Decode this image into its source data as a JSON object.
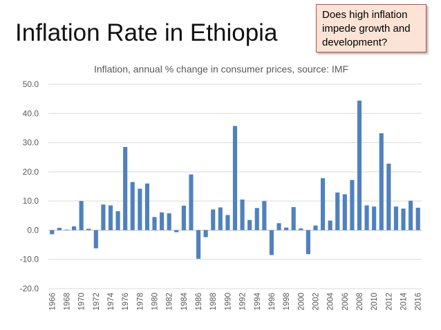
{
  "slide": {
    "title": "Inflation Rate in Ethiopia",
    "callout_lines": [
      "Does high inflation",
      "impede growth and",
      "development?"
    ]
  },
  "chart_data": {
    "type": "bar",
    "title": "Inflation, annual % change in consumer prices, source: IMF",
    "xlabel": "",
    "ylabel": "",
    "ylim": [
      -20,
      50
    ],
    "yticks": [
      50,
      40,
      30,
      20,
      10,
      0,
      -10,
      -20
    ],
    "ytick_labels": [
      "50.0",
      "40.0",
      "30.0",
      "20.0",
      "10.0",
      "0.0",
      "-10.0",
      "-20.0"
    ],
    "grid": true,
    "bar_color": "#4f81bd",
    "categories": [
      1966,
      1967,
      1968,
      1969,
      1970,
      1971,
      1972,
      1973,
      1974,
      1975,
      1976,
      1977,
      1978,
      1979,
      1980,
      1981,
      1982,
      1983,
      1984,
      1985,
      1986,
      1987,
      1988,
      1989,
      1990,
      1991,
      1992,
      1993,
      1994,
      1995,
      1996,
      1997,
      1998,
      1999,
      2000,
      2001,
      2002,
      2003,
      2004,
      2005,
      2006,
      2007,
      2008,
      2009,
      2010,
      2011,
      2012,
      2013,
      2014,
      2015,
      2016
    ],
    "x_tick_labels": [
      "1966",
      "1968",
      "1970",
      "1972",
      "1974",
      "1976",
      "1978",
      "1980",
      "1982",
      "1984",
      "1986",
      "1988",
      "1990",
      "1992",
      "1994",
      "1996",
      "1998",
      "2000",
      "2002",
      "2004",
      "2006",
      "2008",
      "2010",
      "2012",
      "2014",
      "2016"
    ],
    "values": [
      -1.4,
      0.8,
      0.2,
      1.3,
      10.0,
      0.5,
      -6.2,
      8.8,
      8.5,
      6.5,
      28.5,
      16.5,
      14.2,
      16.0,
      4.5,
      6.1,
      5.8,
      -0.7,
      8.4,
      19.1,
      -9.8,
      -2.4,
      7.1,
      7.8,
      5.2,
      35.7,
      10.5,
      3.5,
      7.6,
      10.0,
      -8.5,
      2.4,
      0.9,
      7.9,
      0.6,
      -8.2,
      1.6,
      17.8,
      3.3,
      12.9,
      12.3,
      17.2,
      44.4,
      8.5,
      8.1,
      33.2,
      22.8,
      8.1,
      7.4,
      10.1,
      7.7
    ]
  }
}
